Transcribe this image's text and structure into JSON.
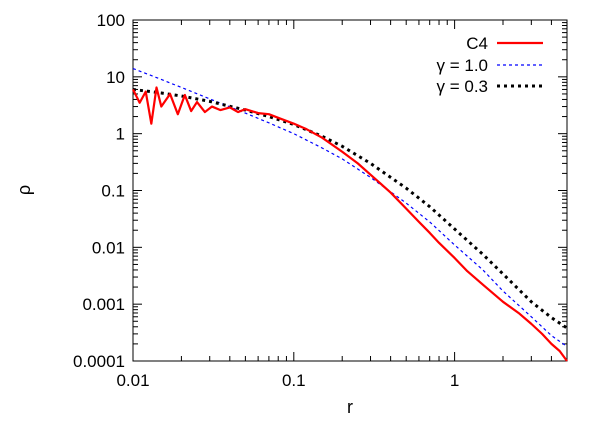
{
  "chart_data": {
    "type": "line",
    "xlabel": "r",
    "ylabel": "ρ",
    "xscale": "log",
    "yscale": "log",
    "xlim": [
      0.01,
      5
    ],
    "ylim": [
      0.0001,
      100
    ],
    "x_ticks": [
      0.01,
      0.1,
      1
    ],
    "x_tick_labels": [
      "0.01",
      "0.1",
      "1"
    ],
    "y_ticks": [
      0.0001,
      0.001,
      0.01,
      0.1,
      1,
      10,
      100
    ],
    "y_tick_labels": [
      "0.0001",
      "0.001",
      "0.01",
      "0.1",
      "1",
      "10",
      "100"
    ],
    "grid": false,
    "legend_position": "top-right",
    "series": [
      {
        "name": "C4",
        "color": "#ff0000",
        "style": "solid",
        "x": [
          0.01,
          0.011,
          0.012,
          0.013,
          0.014,
          0.015,
          0.017,
          0.019,
          0.021,
          0.023,
          0.025,
          0.028,
          0.031,
          0.035,
          0.04,
          0.045,
          0.05,
          0.06,
          0.07,
          0.08,
          0.1,
          0.12,
          0.15,
          0.2,
          0.25,
          0.3,
          0.4,
          0.5,
          0.6,
          0.7,
          0.8,
          1.0,
          1.2,
          1.5,
          2.0,
          2.5,
          3.0,
          3.5,
          4.0,
          4.5,
          5.0
        ],
        "y": [
          6.0,
          3.5,
          5.5,
          1.5,
          6.5,
          3.0,
          5.0,
          2.2,
          4.8,
          2.5,
          3.6,
          2.4,
          3.0,
          2.6,
          2.9,
          2.4,
          2.7,
          2.3,
          2.2,
          1.9,
          1.5,
          1.2,
          0.85,
          0.48,
          0.3,
          0.19,
          0.092,
          0.048,
          0.028,
          0.018,
          0.012,
          0.0065,
          0.0038,
          0.0022,
          0.0011,
          0.0007,
          0.00045,
          0.0003,
          0.0002,
          0.00015,
          0.0001
        ]
      },
      {
        "name": "γ = 1.0",
        "color": "#0000ff",
        "style": "dashed",
        "x": [
          0.01,
          0.015,
          0.02,
          0.03,
          0.05,
          0.07,
          0.1,
          0.15,
          0.2,
          0.3,
          0.5,
          0.7,
          1.0,
          1.5,
          2.0,
          3.0,
          4.0,
          5.0
        ],
        "y": [
          14,
          9.0,
          6.5,
          4.1,
          2.3,
          1.55,
          1.0,
          0.56,
          0.36,
          0.17,
          0.06,
          0.028,
          0.011,
          0.004,
          0.0017,
          0.0006,
          0.00028,
          0.00018
        ]
      },
      {
        "name": "γ = 0.3",
        "color": "#000000",
        "style": "dotted",
        "x": [
          0.01,
          0.015,
          0.02,
          0.03,
          0.05,
          0.07,
          0.1,
          0.15,
          0.2,
          0.3,
          0.5,
          0.7,
          1.0,
          1.5,
          2.0,
          3.0,
          4.0,
          5.0
        ],
        "y": [
          6.0,
          5.2,
          4.6,
          3.7,
          2.6,
          2.0,
          1.45,
          0.9,
          0.6,
          0.3,
          0.11,
          0.052,
          0.021,
          0.0075,
          0.0034,
          0.0011,
          0.00058,
          0.00038
        ]
      }
    ]
  }
}
